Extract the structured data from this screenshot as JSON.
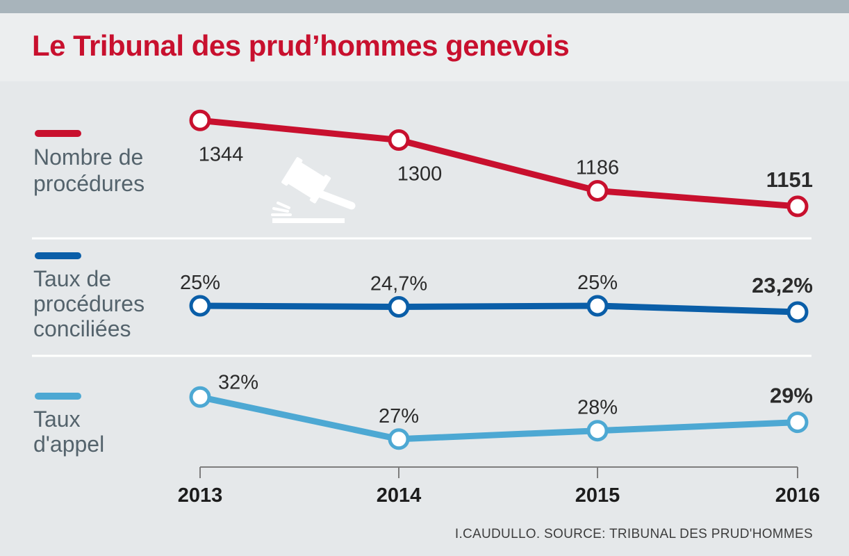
{
  "title": "Le Tribunal des prud’hommes genevois",
  "source": "I.CAUDULLO. SOURCE: TRIBUNAL DES PRUD'HOMMES",
  "chart_data": {
    "type": "line",
    "title": "Le Tribunal des prud’hommes genevois",
    "x": [
      "2013",
      "2014",
      "2015",
      "2016"
    ],
    "series": [
      {
        "name": "Nombre de procédures",
        "legend_lines": [
          "Nombre de",
          "procédures"
        ],
        "color": "#c8102e",
        "values": [
          1344,
          1300,
          1186,
          1151
        ],
        "labels": [
          "1344",
          "1300",
          "1186",
          "1151"
        ],
        "ylim": [
          1140,
          1360
        ],
        "icon": "gavel-icon"
      },
      {
        "name": "Taux de procédures conciliées",
        "legend_lines": [
          "Taux de",
          "procédures",
          "conciliées"
        ],
        "color": "#0a5ea8",
        "values": [
          25,
          24.7,
          25,
          23.2
        ],
        "labels": [
          "25%",
          "24,7%",
          "25%",
          "23,2%"
        ],
        "ylim": [
          20,
          30
        ]
      },
      {
        "name": "Taux d'appel",
        "legend_lines": [
          "Taux",
          "d'appel"
        ],
        "color": "#4da8d3",
        "values": [
          32,
          27,
          28,
          29
        ],
        "labels": [
          "32%",
          "27%",
          "28%",
          "29%"
        ],
        "ylim": [
          25,
          35
        ]
      }
    ]
  }
}
